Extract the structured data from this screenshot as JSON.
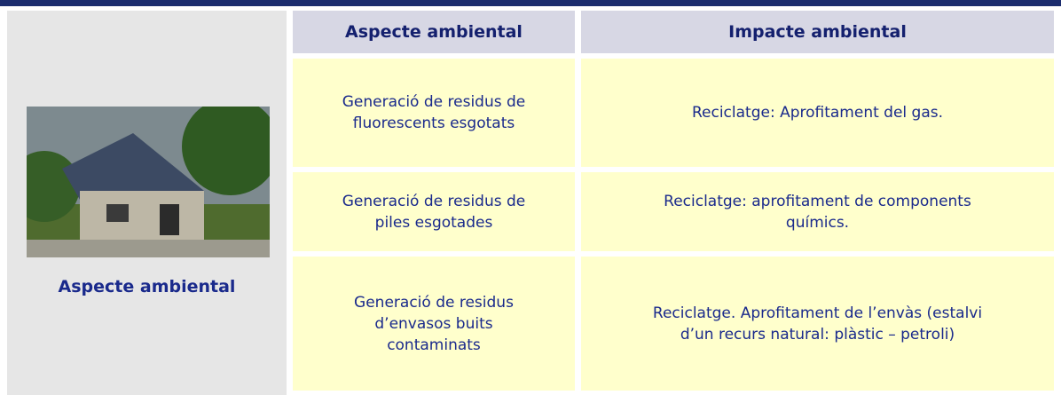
{
  "left": {
    "caption": "Aspecte ambiental"
  },
  "table": {
    "headers": [
      "Aspecte ambiental",
      "Impacte ambiental"
    ],
    "rows": [
      [
        [
          "Generació de residus de",
          "fluorescents esgotats"
        ],
        [
          "Reciclatge: Aprofitament del gas."
        ]
      ],
      [
        [
          "Generació de residus de",
          "piles esgotades"
        ],
        [
          "Reciclatge: aprofitament de components",
          "químics."
        ]
      ],
      [
        [
          "Generació de residus",
          "d’envasos buits",
          "contaminats"
        ],
        [
          "Reciclatge. Aprofitament de l’envàs (estalvi",
          "d’un recurs natural: plàstic – petroli)"
        ]
      ]
    ]
  }
}
